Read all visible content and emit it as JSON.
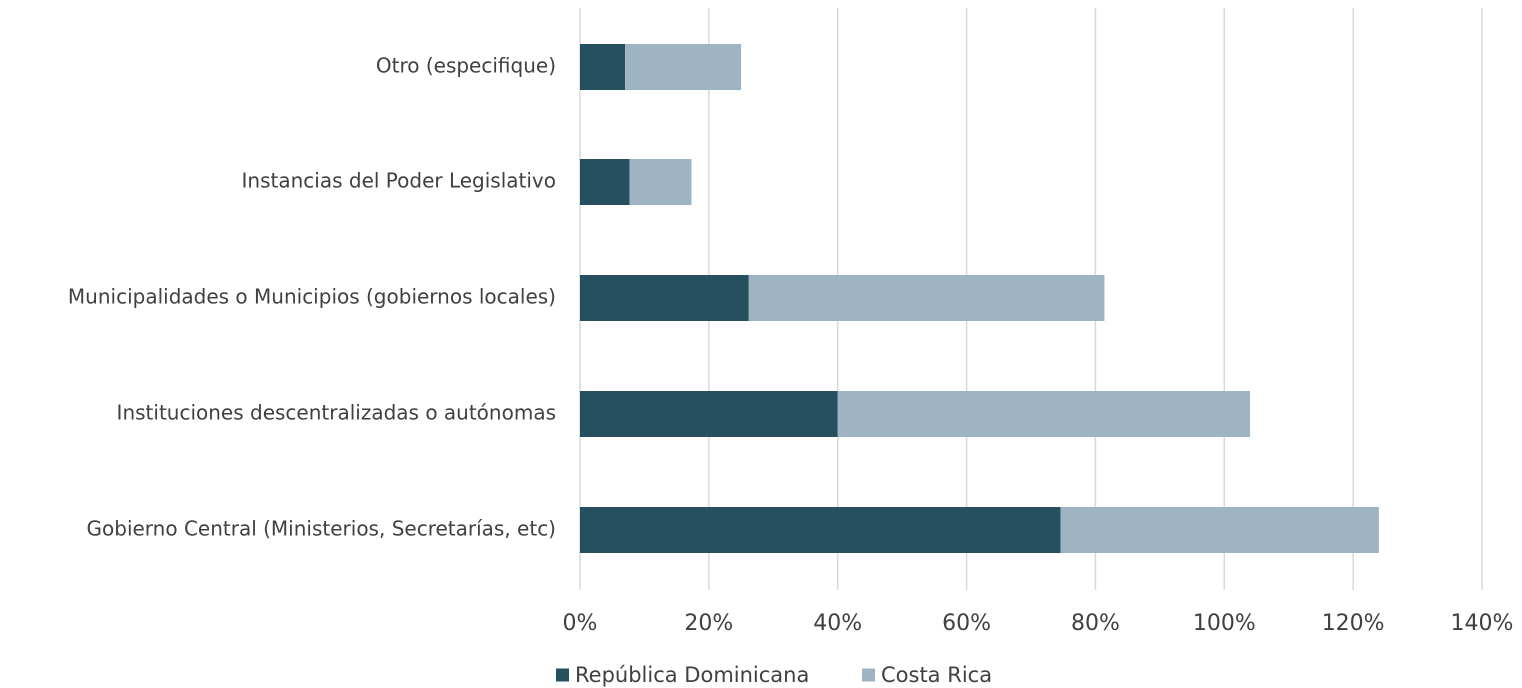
{
  "chart_data": {
    "type": "bar",
    "orientation": "horizontal",
    "stacked": true,
    "categories": [
      "Otro (especifique)",
      "Instancias del Poder Legislativo",
      "Municipalidades o Municipios (gobiernos locales)",
      "Instituciones descentralizadas o  autónomas",
      "Gobierno Central (Ministerios, Secretarías, etc)"
    ],
    "series": [
      {
        "name": "República Dominicana",
        "color": "#264f5f",
        "values": [
          7,
          7.7,
          26.2,
          40,
          74.6
        ]
      },
      {
        "name": "Costa Rica",
        "color": "#9fb4c2",
        "values": [
          18,
          9.6,
          55.2,
          64,
          49.4
        ]
      }
    ],
    "xlim": [
      0,
      140
    ],
    "x_ticks": [
      "0%",
      "20%",
      "40%",
      "60%",
      "80%",
      "100%",
      "120%",
      "140%"
    ],
    "x_tick_values": [
      0,
      20,
      40,
      60,
      80,
      100,
      120,
      140
    ],
    "grid": true,
    "legend_position": "bottom",
    "title": "",
    "xlabel": "",
    "ylabel": ""
  }
}
